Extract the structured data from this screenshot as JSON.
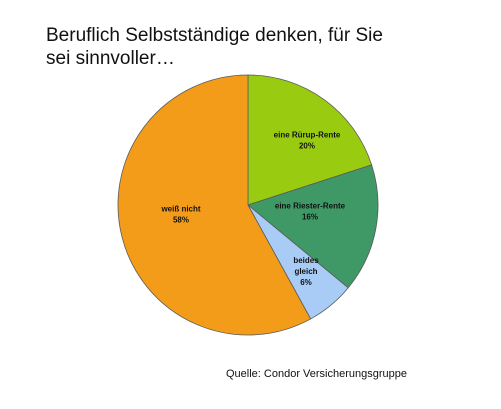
{
  "chart_data": {
    "type": "pie",
    "title": "Beruflich Selbstständige denken, für Sie sei sinnvoller…",
    "slices": [
      {
        "label": [
          "eine Rürup-Rente"
        ],
        "percent_label": "20%",
        "value": 20,
        "color": "#99CC11"
      },
      {
        "label": [
          "eine Riester-Rente"
        ],
        "percent_label": "16%",
        "value": 16,
        "color": "#3E9966"
      },
      {
        "label": [
          "beides",
          "gleich"
        ],
        "percent_label": "6%",
        "value": 6,
        "color": "#A8CCF6"
      },
      {
        "label": [
          "weiß nicht"
        ],
        "percent_label": "58%",
        "value": 58,
        "color": "#F39C1A"
      }
    ],
    "start_angle": "12 o'clock",
    "direction": "clockwise",
    "source": "Quelle: Condor Versicherungsgruppe"
  }
}
